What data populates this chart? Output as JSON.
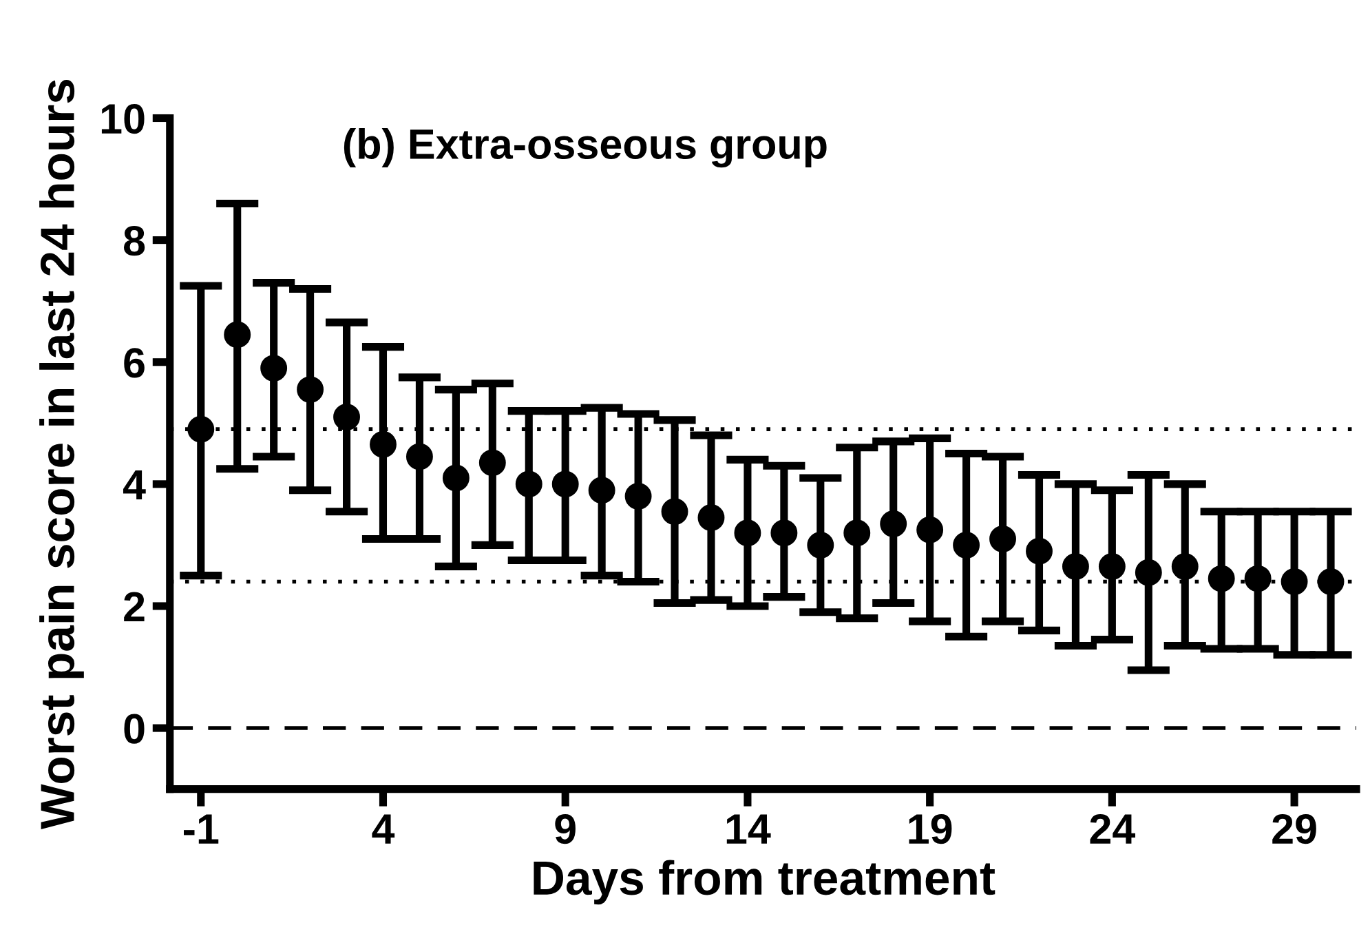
{
  "chart_data": {
    "type": "scatter",
    "title": "(b) Extra-osseous group",
    "xlabel": "Days from treatment",
    "ylabel": "Worst pain score in last 24 hours",
    "x": [
      -1,
      0,
      1,
      2,
      3,
      4,
      5,
      6,
      7,
      8,
      9,
      10,
      11,
      12,
      13,
      14,
      15,
      16,
      17,
      18,
      19,
      20,
      21,
      22,
      23,
      24,
      25,
      26,
      27,
      28,
      29,
      30
    ],
    "series": [
      {
        "color": "#000000",
        "values": [
          4.9,
          6.45,
          5.9,
          5.55,
          5.1,
          4.65,
          4.45,
          4.1,
          4.35,
          4.0,
          4.0,
          3.9,
          3.8,
          3.55,
          3.45,
          3.2,
          3.2,
          3.0,
          3.2,
          3.35,
          3.25,
          3.0,
          3.1,
          2.9,
          2.65,
          2.65,
          2.55,
          2.65,
          2.45,
          2.45,
          2.4,
          2.4
        ],
        "errors": [
          [
            2.5,
            7.25
          ],
          [
            4.25,
            8.6
          ],
          [
            4.45,
            7.3
          ],
          [
            3.9,
            7.2
          ],
          [
            3.55,
            6.65
          ],
          [
            3.1,
            6.25
          ],
          [
            3.1,
            5.75
          ],
          [
            2.65,
            5.55
          ],
          [
            3.0,
            5.65
          ],
          [
            2.75,
            5.2
          ],
          [
            2.75,
            5.2
          ],
          [
            2.5,
            5.25
          ],
          [
            2.4,
            5.15
          ],
          [
            2.05,
            5.05
          ],
          [
            2.1,
            4.8
          ],
          [
            2.0,
            4.4
          ],
          [
            2.15,
            4.3
          ],
          [
            1.9,
            4.1
          ],
          [
            1.8,
            4.6
          ],
          [
            2.05,
            4.7
          ],
          [
            1.75,
            4.75
          ],
          [
            1.5,
            4.5
          ],
          [
            1.75,
            4.45
          ],
          [
            1.6,
            4.15
          ],
          [
            1.35,
            4.0
          ],
          [
            1.45,
            3.9
          ],
          [
            0.95,
            4.15
          ],
          [
            1.35,
            4.0
          ],
          [
            1.3,
            3.55
          ],
          [
            1.3,
            3.55
          ],
          [
            1.2,
            3.55
          ],
          [
            1.2,
            3.55
          ]
        ]
      }
    ],
    "xlim": [
      -1.85,
      30.7
    ],
    "xticks": [
      -1,
      4,
      9,
      14,
      19,
      24,
      29
    ],
    "ylim": [
      -1,
      10
    ],
    "yticks": [
      0,
      2,
      4,
      6,
      8,
      10
    ],
    "ref_lines": [
      {
        "axis": "y",
        "value": 4.9,
        "line_style": "dotted",
        "color": "#000000"
      },
      {
        "axis": "y",
        "value": 2.4,
        "line_style": "dotted",
        "color": "#000000"
      },
      {
        "axis": "y",
        "value": 0,
        "line_style": "dashed",
        "color": "#000000"
      }
    ],
    "marker": "circle",
    "grid": false,
    "legend": false
  }
}
